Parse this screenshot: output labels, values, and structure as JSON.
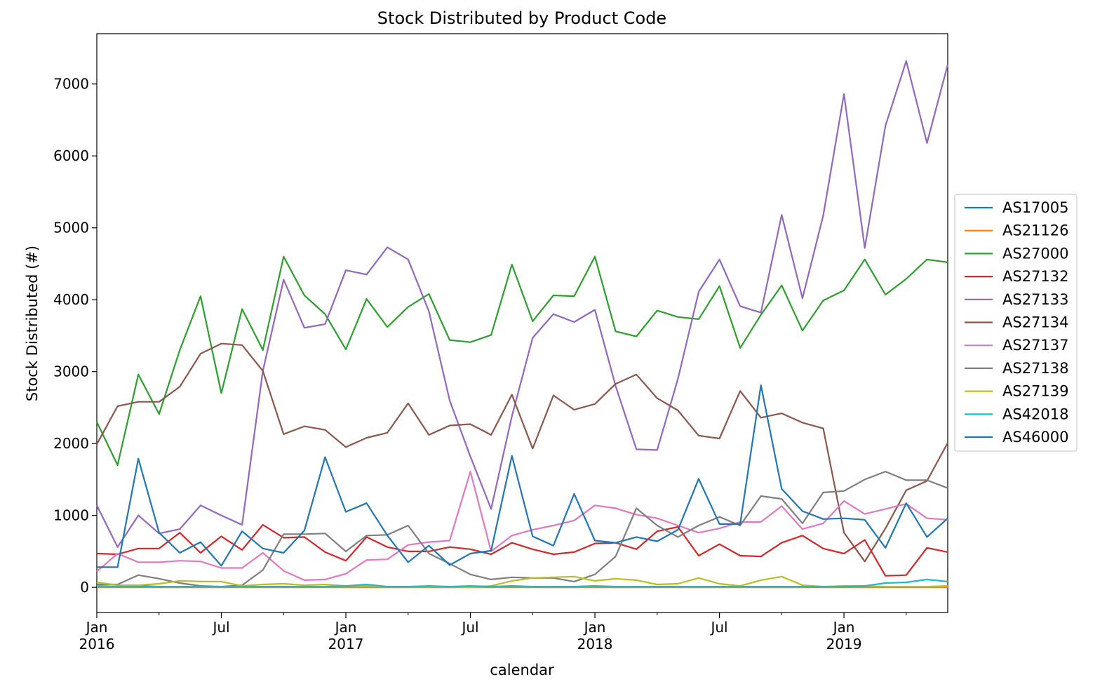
{
  "chart_data": {
    "type": "line",
    "title": "Stock Distributed by Product Code",
    "xlabel": "calendar",
    "ylabel": "Stock Distributed (#)",
    "ylim": [
      -350,
      7700
    ],
    "yticks": [
      0,
      1000,
      2000,
      3000,
      4000,
      5000,
      6000,
      7000
    ],
    "x_start": "2016-01",
    "x": [
      "2016-01",
      "2016-02",
      "2016-03",
      "2016-04",
      "2016-05",
      "2016-06",
      "2016-07",
      "2016-08",
      "2016-09",
      "2016-10",
      "2016-11",
      "2016-12",
      "2017-01",
      "2017-02",
      "2017-03",
      "2017-04",
      "2017-05",
      "2017-06",
      "2017-07",
      "2017-08",
      "2017-09",
      "2017-10",
      "2017-11",
      "2017-12",
      "2018-01",
      "2018-02",
      "2018-03",
      "2018-04",
      "2018-05",
      "2018-06",
      "2018-07",
      "2018-08",
      "2018-09",
      "2018-10",
      "2018-11",
      "2018-12",
      "2019-01",
      "2019-02",
      "2019-03",
      "2019-04",
      "2019-05",
      "2019-06"
    ],
    "xticks_major": [
      {
        "month_index": 0,
        "line1": "Jan",
        "line2": "2016"
      },
      {
        "month_index": 6,
        "line1": "Jul",
        "line2": ""
      },
      {
        "month_index": 12,
        "line1": "Jan",
        "line2": "2017"
      },
      {
        "month_index": 18,
        "line1": "Jul",
        "line2": ""
      },
      {
        "month_index": 24,
        "line1": "Jan",
        "line2": "2018"
      },
      {
        "month_index": 30,
        "line1": "Jul",
        "line2": ""
      },
      {
        "month_index": 36,
        "line1": "Jan",
        "line2": "2019"
      }
    ],
    "legend_position": "center-right outside",
    "grid": false,
    "series": [
      {
        "name": "AS17005",
        "color": "#1f77b4",
        "values": [
          10,
          10,
          20,
          10,
          10,
          10,
          10,
          10,
          10,
          10,
          10,
          10,
          10,
          10,
          10,
          10,
          10,
          10,
          10,
          10,
          10,
          10,
          10,
          10,
          10,
          10,
          10,
          10,
          10,
          10,
          10,
          10,
          10,
          10,
          10,
          10,
          10,
          10,
          10,
          10,
          10,
          10
        ]
      },
      {
        "name": "AS21126",
        "color": "#ff7f0e",
        "values": [
          0,
          0,
          0,
          0,
          0,
          0,
          0,
          0,
          0,
          0,
          0,
          0,
          0,
          0,
          0,
          0,
          0,
          0,
          0,
          0,
          0,
          0,
          0,
          0,
          0,
          0,
          0,
          0,
          0,
          0,
          0,
          0,
          0,
          0,
          0,
          0,
          0,
          0,
          0,
          0,
          0,
          0
        ]
      },
      {
        "name": "AS27000",
        "color": "#2ca02c",
        "values": [
          2300,
          1700,
          2960,
          2410,
          3300,
          4050,
          2700,
          3870,
          3300,
          4600,
          4060,
          3800,
          3310,
          4010,
          3620,
          3900,
          4080,
          3440,
          3410,
          3510,
          4490,
          3700,
          4060,
          4050,
          4600,
          3560,
          3490,
          3850,
          3760,
          3730,
          4190,
          3330,
          3790,
          4200,
          3570,
          3990,
          4130,
          4560,
          4070,
          4290,
          4560,
          4520
        ]
      },
      {
        "name": "AS27132",
        "color": "#d62728",
        "values": [
          470,
          460,
          540,
          540,
          760,
          480,
          710,
          520,
          870,
          690,
          700,
          490,
          370,
          700,
          560,
          500,
          500,
          560,
          530,
          460,
          620,
          530,
          460,
          490,
          610,
          620,
          530,
          780,
          840,
          440,
          600,
          440,
          430,
          620,
          720,
          540,
          470,
          660,
          160,
          170,
          550,
          490
        ]
      },
      {
        "name": "AS27133",
        "color": "#9467bd",
        "values": [
          1140,
          560,
          1000,
          750,
          810,
          1140,
          1000,
          870,
          3010,
          4280,
          3610,
          3660,
          4410,
          4350,
          4730,
          4560,
          3840,
          2600,
          1820,
          1090,
          2380,
          3470,
          3800,
          3690,
          3860,
          2800,
          1920,
          1910,
          2900,
          4110,
          4560,
          3910,
          3820,
          5180,
          4020,
          5170,
          6860,
          4720,
          6420,
          7320,
          6180,
          7270
        ]
      },
      {
        "name": "AS27134",
        "color": "#8c564b",
        "values": [
          1990,
          2520,
          2580,
          2580,
          2790,
          3250,
          3390,
          3370,
          3010,
          2130,
          2240,
          2190,
          1950,
          2080,
          2150,
          2560,
          2120,
          2250,
          2270,
          2120,
          2680,
          1930,
          2670,
          2470,
          2550,
          2830,
          2960,
          2630,
          2460,
          2110,
          2070,
          2730,
          2360,
          2420,
          2290,
          2210,
          760,
          360,
          820,
          1350,
          1480,
          2010
        ]
      },
      {
        "name": "AS27137",
        "color": "#e377c2",
        "values": [
          220,
          470,
          350,
          350,
          370,
          360,
          270,
          270,
          480,
          230,
          100,
          110,
          190,
          380,
          390,
          590,
          630,
          650,
          1610,
          500,
          720,
          800,
          860,
          930,
          1140,
          1100,
          1010,
          960,
          860,
          760,
          820,
          910,
          910,
          1130,
          810,
          890,
          1200,
          1020,
          1090,
          1160,
          960,
          940
        ]
      },
      {
        "name": "AS27138",
        "color": "#7f7f7f",
        "values": [
          40,
          40,
          170,
          120,
          60,
          20,
          10,
          30,
          240,
          740,
          740,
          750,
          500,
          720,
          730,
          860,
          470,
          330,
          180,
          110,
          140,
          130,
          130,
          80,
          180,
          430,
          1100,
          860,
          700,
          860,
          980,
          860,
          1270,
          1230,
          890,
          1320,
          1340,
          1500,
          1610,
          1490,
          1490,
          1380
        ]
      },
      {
        "name": "AS27139",
        "color": "#bcbd22",
        "values": [
          70,
          30,
          30,
          50,
          90,
          80,
          80,
          20,
          40,
          50,
          30,
          40,
          20,
          20,
          10,
          10,
          10,
          10,
          0,
          20,
          90,
          130,
          140,
          150,
          90,
          120,
          100,
          40,
          50,
          130,
          50,
          20,
          100,
          150,
          30,
          10,
          20,
          20,
          10,
          10,
          10,
          20
        ]
      },
      {
        "name": "AS42018",
        "color": "#17becf",
        "values": [
          20,
          10,
          10,
          10,
          10,
          10,
          10,
          10,
          10,
          10,
          10,
          10,
          20,
          40,
          10,
          10,
          20,
          10,
          20,
          10,
          20,
          10,
          10,
          10,
          20,
          10,
          10,
          10,
          10,
          10,
          10,
          10,
          10,
          10,
          10,
          10,
          10,
          20,
          60,
          70,
          110,
          80
        ]
      },
      {
        "name": "AS46000",
        "color": "#1f77b4",
        "values": [
          280,
          280,
          1790,
          760,
          480,
          630,
          300,
          780,
          540,
          480,
          790,
          1810,
          1050,
          1170,
          720,
          350,
          580,
          310,
          470,
          510,
          1830,
          710,
          580,
          1300,
          650,
          620,
          700,
          640,
          800,
          1510,
          880,
          880,
          2810,
          1370,
          1060,
          950,
          960,
          940,
          550,
          1170,
          700,
          960
        ]
      }
    ]
  }
}
